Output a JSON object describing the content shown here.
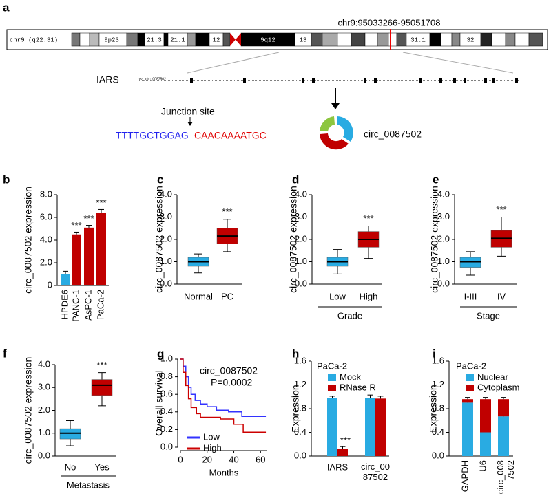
{
  "panel_a": {
    "panel_label": "a",
    "locus": "chr9:95033266-95051708",
    "chromosome": "chr9 (q22.31)",
    "bands": [
      "9p23",
      "21.3",
      "21.1",
      "12",
      "9q12",
      "13",
      "31.1",
      "32"
    ],
    "gene": "IARS",
    "transcript": "hsa_circ_0087502",
    "junction_label": "Junction site",
    "sequence_left": "TTTTGCTGGAG",
    "sequence_right": "CAACAAAATGC",
    "circ_name": "circ_0087502"
  },
  "chart_data": [
    {
      "type": "bar",
      "panel_label": "b",
      "ylabel": "circ_0087502 expression",
      "categories": [
        "HPDE6",
        "PANC-1",
        "AsPC-1",
        "PaCa-2"
      ],
      "values": [
        1.0,
        4.5,
        5.1,
        6.4
      ],
      "errors": [
        0.25,
        0.2,
        0.2,
        0.3
      ],
      "colors": [
        "#29abe2",
        "#c00000",
        "#c00000",
        "#c00000"
      ],
      "significance": [
        null,
        "***",
        "***",
        "***"
      ],
      "ylim": [
        0,
        8
      ],
      "yticks": [
        0,
        {
          "value": 2,
          "label": "2.0"
        },
        {
          "value": 4,
          "label": "4.0"
        },
        {
          "value": 6,
          "label": "6.0"
        },
        {
          "value": 8,
          "label": "8.0"
        }
      ]
    },
    {
      "type": "box",
      "panel_label": "c",
      "ylabel": "circ_0087502 expression",
      "categories": [
        "Normal",
        "PC"
      ],
      "colors": [
        "#29abe2",
        "#c00000"
      ],
      "significance": [
        null,
        "***"
      ],
      "boxes": [
        {
          "min": 0.5,
          "q1": 0.8,
          "median": 1.0,
          "q3": 1.2,
          "max": 1.35
        },
        {
          "min": 1.45,
          "q1": 1.8,
          "median": 2.15,
          "q3": 2.5,
          "max": 2.9
        }
      ],
      "ylim": [
        0,
        4
      ],
      "yticks": [
        {
          "value": 0,
          "label": "0.0"
        },
        {
          "value": 1,
          "label": "1.0"
        },
        {
          "value": 2,
          "label": "2.0"
        },
        {
          "value": 3,
          "label": "3.0"
        },
        {
          "value": 4,
          "label": "4.0"
        }
      ]
    },
    {
      "type": "box",
      "panel_label": "d",
      "ylabel": "circ_0087502 expression",
      "xlabel": "Grade",
      "categories": [
        "Low",
        "High"
      ],
      "colors": [
        "#29abe2",
        "#c00000"
      ],
      "significance": [
        null,
        "***"
      ],
      "boxes": [
        {
          "min": 0.45,
          "q1": 0.8,
          "median": 1.0,
          "q3": 1.2,
          "max": 1.55
        },
        {
          "min": 1.15,
          "q1": 1.65,
          "median": 2.0,
          "q3": 2.35,
          "max": 2.6
        }
      ],
      "ylim": [
        0,
        4
      ],
      "yticks": [
        {
          "value": 0,
          "label": "0.0"
        },
        {
          "value": 1,
          "label": "1.0"
        },
        {
          "value": 2,
          "label": "2.0"
        },
        {
          "value": 3,
          "label": "3.0"
        },
        {
          "value": 4,
          "label": "4.0"
        }
      ]
    },
    {
      "type": "box",
      "panel_label": "e",
      "ylabel": "circ_0087502 expression",
      "xlabel": "Stage",
      "categories": [
        "I-III",
        "IV"
      ],
      "colors": [
        "#29abe2",
        "#c00000"
      ],
      "significance": [
        null,
        "***"
      ],
      "boxes": [
        {
          "min": 0.4,
          "q1": 0.75,
          "median": 1.0,
          "q3": 1.2,
          "max": 1.45
        },
        {
          "min": 1.25,
          "q1": 1.65,
          "median": 2.05,
          "q3": 2.4,
          "max": 3.0
        }
      ],
      "ylim": [
        0,
        4
      ],
      "yticks": [
        {
          "value": 0,
          "label": "0.0"
        },
        {
          "value": 1,
          "label": "1.0"
        },
        {
          "value": 2,
          "label": "2.0"
        },
        {
          "value": 3,
          "label": "3.0"
        },
        {
          "value": 4,
          "label": "4.0"
        }
      ]
    },
    {
      "type": "box",
      "panel_label": "f",
      "ylabel": "circ_0087502 expression",
      "xlabel": "Metastasis",
      "categories": [
        "No",
        "Yes"
      ],
      "colors": [
        "#29abe2",
        "#c00000"
      ],
      "significance": [
        null,
        "***"
      ],
      "boxes": [
        {
          "min": 0.45,
          "q1": 0.75,
          "median": 1.0,
          "q3": 1.2,
          "max": 1.55
        },
        {
          "min": 2.2,
          "q1": 2.65,
          "median": 3.1,
          "q3": 3.35,
          "max": 3.65
        }
      ],
      "ylim": [
        0,
        4
      ],
      "yticks": [
        {
          "value": 0,
          "label": "0.0"
        },
        {
          "value": 1,
          "label": "1.0"
        },
        {
          "value": 2,
          "label": "2.0"
        },
        {
          "value": 3,
          "label": "3.0"
        },
        {
          "value": 4,
          "label": "4.0"
        }
      ]
    },
    {
      "type": "line",
      "panel_label": "g",
      "ylabel": "Overall survival",
      "xlabel": "Months",
      "annotations": [
        "circ_0087502",
        "P=0.0002"
      ],
      "series": [
        {
          "name": "Low",
          "color": "#3333ff",
          "x": [
            0,
            2,
            2,
            4,
            4,
            6,
            6,
            8,
            8,
            11,
            11,
            15,
            15,
            20,
            20,
            27,
            27,
            36,
            36,
            46,
            46,
            64
          ],
          "values": [
            1.0,
            1.0,
            0.92,
            0.92,
            0.8,
            0.8,
            0.68,
            0.68,
            0.6,
            0.6,
            0.53,
            0.53,
            0.49,
            0.49,
            0.46,
            0.46,
            0.42,
            0.42,
            0.4,
            0.4,
            0.35,
            0.35
          ]
        },
        {
          "name": "High",
          "color": "#cc0000",
          "x": [
            0,
            2,
            2,
            4,
            4,
            6,
            6,
            8,
            8,
            12,
            12,
            15,
            15,
            30,
            30,
            40,
            40,
            47,
            47,
            64
          ],
          "values": [
            1.0,
            1.0,
            0.85,
            0.85,
            0.7,
            0.7,
            0.55,
            0.55,
            0.45,
            0.45,
            0.38,
            0.38,
            0.34,
            0.34,
            0.32,
            0.32,
            0.26,
            0.26,
            0.17,
            0.17
          ]
        }
      ],
      "xlim": [
        0,
        65
      ],
      "xticks": [
        0,
        20,
        40,
        60
      ],
      "ylim": [
        0,
        1
      ],
      "yticks": [
        {
          "value": 0,
          "label": "0.0"
        },
        {
          "value": 0.2,
          "label": "0.2"
        },
        {
          "value": 0.4,
          "label": "0.4"
        },
        {
          "value": 0.6,
          "label": "0.6"
        },
        {
          "value": 0.8,
          "label": "0.8"
        },
        {
          "value": 1,
          "label": "1.0"
        }
      ]
    },
    {
      "type": "grouped_bar",
      "panel_label": "h",
      "title": "PaCa-2",
      "ylabel": "Expression",
      "categories": [
        "IARS",
        "circ_00\n87502"
      ],
      "series": [
        {
          "name": "Mock",
          "color": "#29abe2",
          "values": [
            0.98,
            0.98
          ],
          "errors": [
            0.03,
            0.05
          ],
          "significance": [
            null,
            null
          ]
        },
        {
          "name": "RNase R",
          "color": "#c00000",
          "values": [
            0.12,
            0.97
          ],
          "errors": [
            0.04,
            0.04
          ],
          "significance": [
            "***",
            null
          ]
        }
      ],
      "ylim": [
        0,
        1.6
      ],
      "yticks": [
        {
          "value": 0,
          "label": "0.0"
        },
        {
          "value": 0.4,
          "label": "0.4"
        },
        {
          "value": 0.8,
          "label": "0.8"
        },
        {
          "value": 1.2,
          "label": "1.2"
        },
        {
          "value": 1.6,
          "label": "1.6"
        }
      ]
    },
    {
      "type": "stacked_bar",
      "panel_label": "i",
      "title": "PaCa-2",
      "ylabel": "Expression",
      "categories": [
        "GAPDH",
        "U6",
        "circ_008\n7502"
      ],
      "series": [
        {
          "name": "Nuclear",
          "color": "#29abe2",
          "values": [
            0.9,
            0.4,
            0.67
          ],
          "errors": [
            0.02,
            0.02,
            0.04
          ]
        },
        {
          "name": "Cytoplasm",
          "color": "#c00000",
          "values": [
            0.06,
            0.56,
            0.29
          ],
          "errors": [
            0.03,
            0.03,
            0.03
          ]
        }
      ],
      "ylim": [
        0,
        1.6
      ],
      "yticks": [
        {
          "value": 0,
          "label": "0.0"
        },
        {
          "value": 0.4,
          "label": "0.4"
        },
        {
          "value": 0.8,
          "label": "0.8"
        },
        {
          "value": 1.2,
          "label": "1.2"
        },
        {
          "value": 1.6,
          "label": "1.6"
        }
      ]
    }
  ]
}
